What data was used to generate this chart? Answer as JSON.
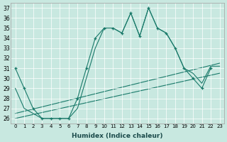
{
  "xlabel": "Humidex (Indice chaleur)",
  "bg_color": "#c8e8e0",
  "line_color": "#1a7a6a",
  "xlim": [
    -0.5,
    23.5
  ],
  "ylim": [
    25.5,
    37.5
  ],
  "xticks": [
    0,
    1,
    2,
    3,
    4,
    5,
    6,
    7,
    8,
    9,
    10,
    11,
    12,
    13,
    14,
    15,
    16,
    17,
    18,
    19,
    20,
    21,
    22,
    23
  ],
  "yticks": [
    26,
    27,
    28,
    29,
    30,
    31,
    32,
    33,
    34,
    35,
    36,
    37
  ],
  "line1_x": [
    0,
    1,
    2,
    3,
    4,
    5,
    6,
    7,
    8,
    9,
    10,
    11,
    12,
    13,
    14,
    15,
    16,
    17,
    18,
    19,
    20,
    21,
    22
  ],
  "line1_y": [
    31,
    29,
    27,
    26,
    26,
    26,
    26,
    28,
    31,
    34,
    35,
    35,
    34.5,
    36.5,
    34.2,
    37,
    35,
    34.5,
    33,
    31,
    30,
    29,
    31
  ],
  "line2_x": [
    0,
    1,
    2,
    3,
    4,
    5,
    6,
    7,
    8,
    9,
    10,
    11,
    12,
    13,
    14,
    15,
    16,
    17,
    18,
    19,
    20,
    21,
    22,
    23
  ],
  "line2_y": [
    29,
    27,
    26.5,
    26,
    26,
    26,
    26,
    27,
    30,
    33,
    35,
    35,
    34.5,
    36.5,
    34.2,
    37,
    35,
    34.5,
    33,
    31,
    30.5,
    29.5,
    31.2,
    31.2
  ],
  "trend1_x": [
    0,
    23
  ],
  "trend1_y": [
    26.5,
    31.5
  ],
  "trend2_x": [
    0,
    23
  ],
  "trend2_y": [
    26.0,
    30.5
  ]
}
